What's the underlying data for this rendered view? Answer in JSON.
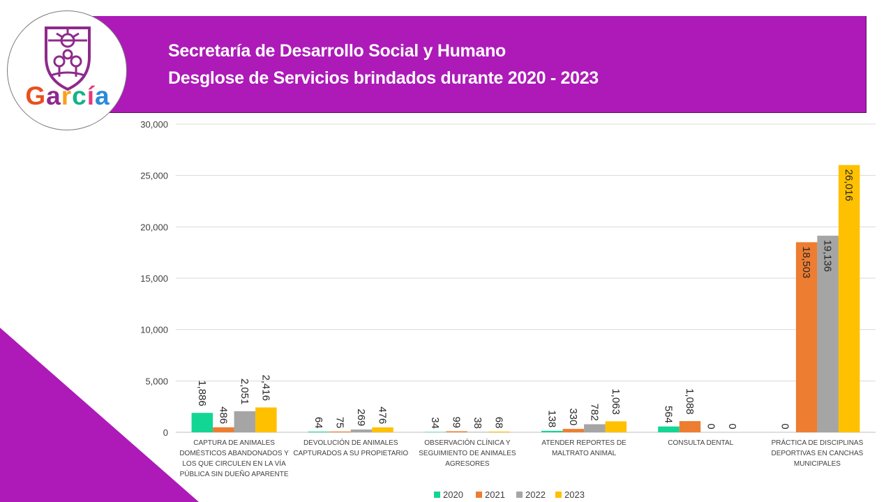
{
  "header": {
    "title_line1": "Secretaría de Desarrollo Social y Humano",
    "title_line2": "Desglose de Servicios brindados durante 2020 - 2023",
    "logo_text": "García"
  },
  "colors": {
    "banner": "#ad1ab8",
    "s2020": "#12d693",
    "s2021": "#ed7d31",
    "s2022": "#a5a5a5",
    "s2023": "#ffc000"
  },
  "chart_data": {
    "type": "bar",
    "title": "",
    "ylim": [
      0,
      30000
    ],
    "yticks": [
      "0",
      "5,000",
      "10,000",
      "15,000",
      "20,000",
      "25,000",
      "30,000"
    ],
    "categories": [
      [
        "CAPTURA DE ANIMALES",
        "DOMÉSTICOS ABANDONADOS Y",
        "LOS QUE CIRCULEN EN LA VÍA",
        "PÚBLICA SIN DUEÑO APARENTE"
      ],
      [
        "DEVOLUCIÓN DE ANIMALES",
        "CAPTURADOS A SU PROPIETARIO"
      ],
      [
        "OBSERVACIÓN CLÍNICA Y",
        "SEGUIMIENTO DE ANIMALES",
        "AGRESORES"
      ],
      [
        "ATENDER REPORTES DE",
        "MALTRATO ANIMAL"
      ],
      [
        "CONSULTA DENTAL"
      ],
      [
        "PRÁCTICA DE DISCIPLINAS",
        "DEPORTIVAS EN CANCHAS",
        "MUNICIPALES"
      ]
    ],
    "series": [
      {
        "name": "2020",
        "color": "#12d693",
        "values": [
          1886,
          64,
          34,
          138,
          564,
          0
        ],
        "labels": [
          "1,886",
          "64",
          "34",
          "138",
          "564",
          "0"
        ]
      },
      {
        "name": "2021",
        "color": "#ed7d31",
        "values": [
          486,
          75,
          99,
          330,
          1088,
          18503
        ],
        "labels": [
          "486",
          "75",
          "99",
          "330",
          "1,088",
          "18,503"
        ]
      },
      {
        "name": "2022",
        "color": "#a5a5a5",
        "values": [
          2051,
          269,
          38,
          782,
          0,
          19136
        ],
        "labels": [
          "2,051",
          "269",
          "38",
          "782",
          "0",
          "19,136"
        ]
      },
      {
        "name": "2023",
        "color": "#ffc000",
        "values": [
          2416,
          476,
          68,
          1063,
          0,
          26016
        ],
        "labels": [
          "2,416",
          "476",
          "68",
          "1,063",
          "0",
          "26,016"
        ]
      }
    ],
    "legend": "bottom"
  }
}
